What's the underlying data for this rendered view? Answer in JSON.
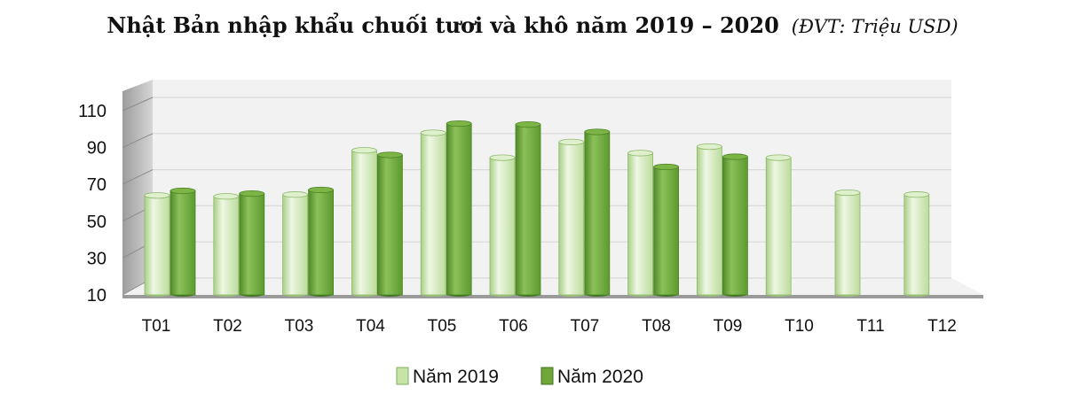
{
  "title": "Nhật Bản nhập khẩu chuối tươi và khô năm 2019 – 2020",
  "unit": "(ĐVT: Triệu USD)",
  "colors": {
    "series_2019": "#c6e4a8",
    "series_2020": "#6fa63a",
    "gridline": "#d9d9d9",
    "back_wall": "#f2f2f2",
    "side_wall": "#b8b8b8",
    "floor": "#9a9a9a"
  },
  "chart_data": {
    "type": "bar",
    "title": "Nhật Bản nhập khẩu chuối tươi và khô năm 2019 – 2020",
    "subtitle": "(ĐVT: Triệu USD)",
    "categories": [
      "T01",
      "T02",
      "T03",
      "T04",
      "T05",
      "T06",
      "T07",
      "T08",
      "T09",
      "T10",
      "T11",
      "T12"
    ],
    "series": [
      {
        "name": "Năm 2019",
        "values": [
          64,
          63.5,
          64.5,
          88.5,
          98,
          84.5,
          93,
          87,
          90.5,
          84.5,
          65.5,
          64.5
        ]
      },
      {
        "name": "Năm 2020",
        "values": [
          66.5,
          65,
          67,
          86,
          103,
          102.5,
          98.5,
          79.5,
          85,
          null,
          null,
          null
        ]
      }
    ],
    "yticks": [
      10,
      30,
      50,
      70,
      90,
      110
    ],
    "ylim": [
      10,
      110
    ],
    "grid": true,
    "legend": "bottom"
  }
}
